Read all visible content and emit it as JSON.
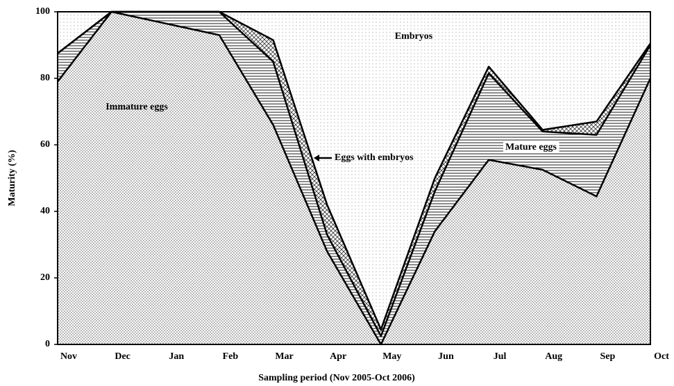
{
  "chart_data": {
    "type": "stacked-area",
    "y_label": "Maturity (%)",
    "x_label": "Sampling period (Nov 2005-Oct 2006)",
    "categories": [
      "Nov",
      "Dec",
      "Jan",
      "Feb",
      "Mar",
      "Apr",
      "May",
      "Jun",
      "Jul",
      "Aug",
      "Sep",
      "Oct"
    ],
    "series": [
      {
        "name": "Immature eggs",
        "color": "#555555",
        "pattern": "dense-dots",
        "values": [
          79,
          100,
          96.5,
          93,
          66,
          28,
          0,
          34,
          55.5,
          52.5,
          44.5,
          80
        ]
      },
      {
        "name": "Mature eggs",
        "color": "#000000",
        "pattern": "horizontal-lines",
        "values": [
          8.5,
          0,
          3.5,
          7,
          19,
          5,
          2.5,
          12,
          26,
          11.5,
          18.5,
          10
        ]
      },
      {
        "name": "Eggs with embryos",
        "color": "#333333",
        "pattern": "crosshatch",
        "values": [
          0,
          0,
          0,
          0,
          6.5,
          9,
          2,
          4,
          2,
          0.5,
          4,
          0.5
        ]
      },
      {
        "name": "Embryos",
        "color": "#999999",
        "pattern": "light-dots",
        "values": [
          12.5,
          0,
          0,
          0,
          8.5,
          58,
          95.5,
          50,
          16.5,
          35.5,
          33,
          9.5
        ]
      }
    ],
    "ylim": [
      0,
      100
    ],
    "yticks": [
      0,
      20,
      40,
      60,
      80,
      100
    ]
  }
}
